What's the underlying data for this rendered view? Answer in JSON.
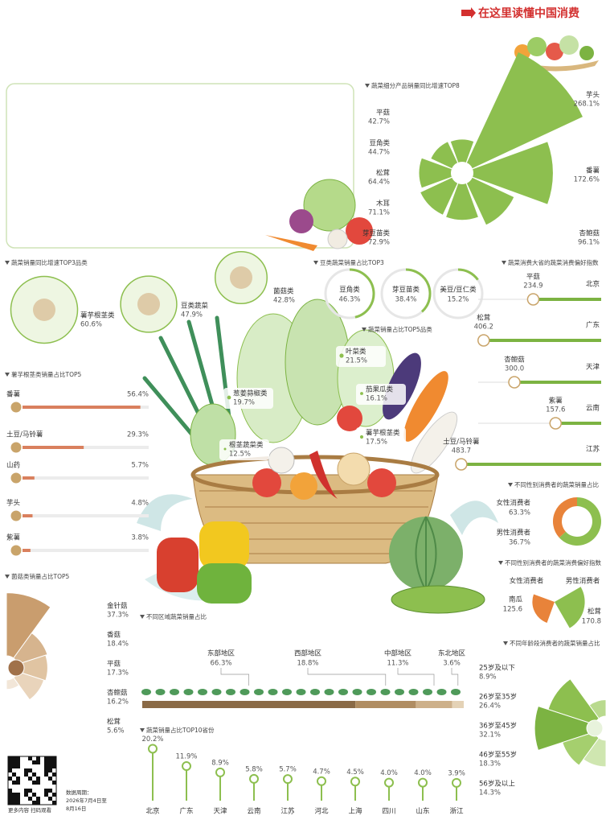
{
  "header": {
    "brand": "在这里读懂中国消费"
  },
  "footer": {
    "scan": "更多内容 扫码观看",
    "period": [
      "数据周期：",
      "2026年7月4日至",
      "8月16日"
    ]
  },
  "chart_data": [
    {
      "type": "rose",
      "title": "蔬菜细分产品销量同比增速TOP8",
      "categories": [
        "平菇",
        "豆角类",
        "松茸",
        "木耳",
        "芽豆苗类",
        "杏鲍菇",
        "番薯",
        "芋头"
      ],
      "values": [
        42.7,
        44.7,
        64.4,
        71.1,
        72.9,
        96.1,
        172.6,
        268.1
      ],
      "value_labels": [
        "42.7%",
        "44.7%",
        "64.4%",
        "71.1%",
        "72.9%",
        "96.1%",
        "172.6%",
        "268.1%"
      ],
      "color": "#8dbf4f"
    },
    {
      "type": "bubble",
      "title": "蔬菜销量同比增速TOP3品类",
      "categories": [
        "薯芋根茎类",
        "豆类蔬菜",
        "菌菇类"
      ],
      "values": [
        60.6,
        47.9,
        42.8
      ],
      "value_labels": [
        "60.6%",
        "47.9%",
        "42.8%"
      ],
      "color": "#8dbf4f"
    },
    {
      "type": "ring",
      "title": "豆类蔬菜销量占比TOP3",
      "categories": [
        "豆角类",
        "芽豆苗类",
        "美豆/豆仁类"
      ],
      "values": [
        46.3,
        38.4,
        15.2
      ],
      "value_labels": [
        "46.3%",
        "38.4%",
        "15.2%"
      ],
      "color": "#8dbf4f"
    },
    {
      "type": "tag",
      "title": "蔬菜销量占比TOP5品类",
      "categories": [
        "叶菜类",
        "茄果瓜类",
        "葱姜蒜椒类",
        "薯芋根茎类",
        "根茎蔬菜类"
      ],
      "values": [
        21.5,
        16.1,
        19.7,
        17.5,
        12.5
      ],
      "value_labels": [
        "21.5%",
        "16.1%",
        "19.7%",
        "17.5%",
        "12.5%"
      ],
      "color": "#8dbf4f"
    },
    {
      "type": "hbar",
      "title": "薯芋根茎类销量占比TOP5",
      "categories": [
        "番薯",
        "土豆/马铃薯",
        "山药",
        "芋头",
        "紫薯"
      ],
      "values": [
        56.4,
        29.3,
        5.7,
        4.8,
        3.8
      ],
      "value_labels": [
        "56.4%",
        "29.3%",
        "5.7%",
        "4.8%",
        "3.8%"
      ],
      "color": "#d9805e"
    },
    {
      "type": "half-rose",
      "title": "菌菇类销量占比TOP5",
      "side": "left",
      "categories": [
        "金针菇",
        "香菇",
        "平菇",
        "杏鲍菇",
        "松茸"
      ],
      "values": [
        37.3,
        18.4,
        17.3,
        16.2,
        5.6
      ],
      "value_labels": [
        "37.3%",
        "18.4%",
        "17.3%",
        "16.2%",
        "5.6%"
      ],
      "colors": [
        "#c99d6e",
        "#d6b48e",
        "#e0c4a2",
        "#e9d4bb",
        "#f2e6d8"
      ]
    },
    {
      "type": "index-bar",
      "title": "蔬菜消费大省的蔬菜消费偏好指数",
      "categories": [
        "北京",
        "广东",
        "天津",
        "云南",
        "江苏"
      ],
      "products": [
        "平菇",
        "松茸",
        "杏鲍菇",
        "紫薯",
        "土豆/马铃薯"
      ],
      "values": [
        234.9,
        406.2,
        300.0,
        157.6,
        483.7
      ],
      "value_labels": [
        "234.9",
        "406.2",
        "300.0",
        "157.6",
        "483.7"
      ],
      "color": "#7cb342"
    },
    {
      "type": "donut",
      "title": "不同性别消费者的蔬菜销量占比",
      "categories": [
        "女性消费者",
        "男性消费者"
      ],
      "values": [
        63.3,
        36.7
      ],
      "value_labels": [
        "63.3%",
        "36.7%"
      ],
      "colors": [
        "#8dbf4f",
        "#e8833a"
      ]
    },
    {
      "type": "wedge",
      "title": "不同性别消费者的蔬菜消费偏好指数",
      "categories": [
        "女性消费者",
        "男性消费者"
      ],
      "products": [
        "南瓜",
        "松茸"
      ],
      "values": [
        125.6,
        170.8
      ],
      "value_labels": [
        "125.6",
        "170.8"
      ],
      "colors": [
        "#e8833a",
        "#8dbf4f"
      ]
    },
    {
      "type": "half-rose",
      "title": "不同年龄段消费者的蔬菜销量占比",
      "side": "right",
      "categories": [
        "25岁及以下",
        "26岁至35岁",
        "36岁至45岁",
        "46岁至55岁",
        "56岁及以上"
      ],
      "values": [
        8.9,
        26.4,
        32.1,
        18.3,
        14.3
      ],
      "value_labels": [
        "8.9%",
        "26.4%",
        "32.1%",
        "18.3%",
        "14.3%"
      ],
      "colors": [
        "#b9da8e",
        "#8dbf4f",
        "#7cb342",
        "#a5cf6e",
        "#cfe6b0"
      ]
    },
    {
      "type": "stacked-bar",
      "title": "不同区域蔬菜销量占比",
      "categories": [
        "东部地区",
        "西部地区",
        "中部地区",
        "东北地区"
      ],
      "values": [
        66.3,
        18.8,
        11.3,
        3.6
      ],
      "value_labels": [
        "66.3%",
        "18.8%",
        "11.3%",
        "3.6%"
      ],
      "colors": [
        "#8a6a46",
        "#b08d62",
        "#cdb08a",
        "#e4d2b6"
      ]
    },
    {
      "type": "lollipop",
      "title": "蔬菜销量占比TOP10省份",
      "categories": [
        "北京",
        "广东",
        "天津",
        "云南",
        "江苏",
        "河北",
        "上海",
        "四川",
        "山东",
        "浙江"
      ],
      "values": [
        20.2,
        11.9,
        8.9,
        5.8,
        5.7,
        4.7,
        4.5,
        4.0,
        4.0,
        3.9
      ],
      "value_labels": [
        "20.2%",
        "11.9%",
        "8.9%",
        "5.8%",
        "5.7%",
        "4.7%",
        "4.5%",
        "4.0%",
        "4.0%",
        "3.9%"
      ],
      "color": "#8dbf4f"
    }
  ]
}
